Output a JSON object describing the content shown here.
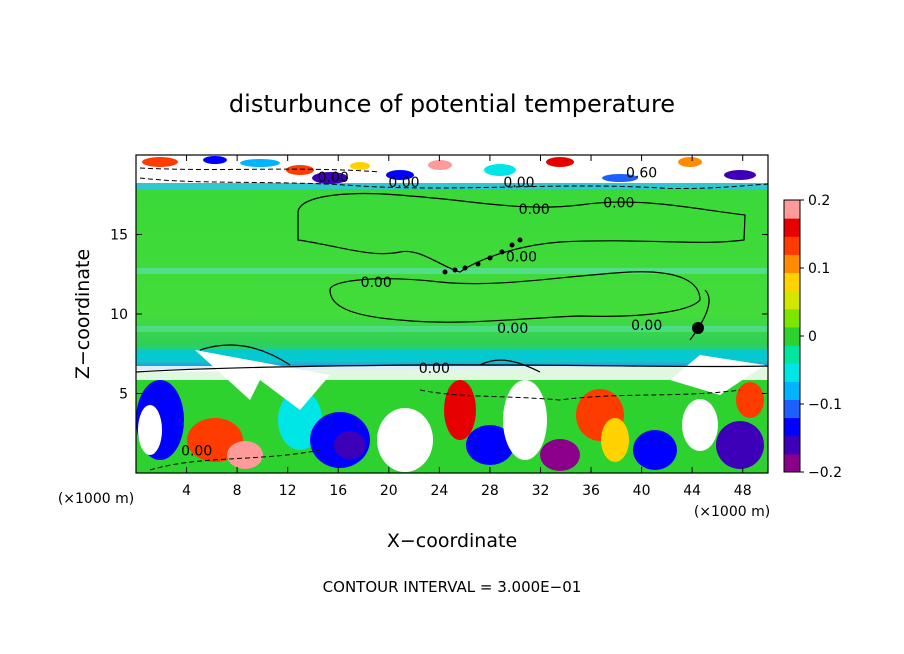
{
  "chart_data": {
    "type": "heatmap",
    "title": "disturbunce of potential temperature",
    "xlabel": "X−coordinate",
    "ylabel": "Z−coordinate",
    "x_unit_label": "(×1000 m)",
    "x_unit_label_right": "(×1000 m)",
    "footer": "CONTOUR INTERVAL = 3.000E−01",
    "xlim": [
      0,
      50
    ],
    "ylim": [
      0,
      20
    ],
    "x_ticks": [
      4,
      8,
      12,
      16,
      20,
      24,
      28,
      32,
      36,
      40,
      44,
      48
    ],
    "x_tick_labels": [
      "4",
      "8",
      "12",
      "16",
      "20",
      "24",
      "28",
      "32",
      "36",
      "40",
      "44",
      "48"
    ],
    "y_ticks": [
      5,
      10,
      15
    ],
    "y_tick_labels": [
      "5",
      "10",
      "15"
    ],
    "colorbar": {
      "range": [
        -0.2,
        0.2
      ],
      "ticks": [
        -0.2,
        -0.1,
        0,
        0.1,
        0.2
      ],
      "tick_labels": [
        "−0.2",
        "−0.1",
        "0",
        "0.1",
        "0.2"
      ],
      "colors": [
        "#8b008b",
        "#3d00b8",
        "#0000ff",
        "#1e60ff",
        "#00b4ff",
        "#00e6e6",
        "#00e69e",
        "#2ed22e",
        "#7de600",
        "#d2e600",
        "#ffd200",
        "#ff8c00",
        "#ff3c00",
        "#e60000",
        "#ff9a9a"
      ]
    },
    "contour_labels": [
      {
        "x": 4.8,
        "y": 1.1,
        "text": "0.00"
      },
      {
        "x": 15.6,
        "y": 18.3,
        "text": "0.00"
      },
      {
        "x": 21.2,
        "y": 18.0,
        "text": "0.00"
      },
      {
        "x": 30.3,
        "y": 18.0,
        "text": "0.00"
      },
      {
        "x": 40.0,
        "y": 18.6,
        "text": "0.60"
      },
      {
        "x": 38.2,
        "y": 16.7,
        "text": "0.00"
      },
      {
        "x": 31.5,
        "y": 16.3,
        "text": "0.00"
      },
      {
        "x": 19.0,
        "y": 11.7,
        "text": "0.00"
      },
      {
        "x": 30.5,
        "y": 13.3,
        "text": "0.00"
      },
      {
        "x": 29.8,
        "y": 8.8,
        "text": "0.00"
      },
      {
        "x": 40.4,
        "y": 9.0,
        "text": "0.00"
      },
      {
        "x": 23.6,
        "y": 6.3,
        "text": "0.00"
      }
    ],
    "field_regions": [
      {
        "zone": "upper layer z 18-20",
        "value": "mixed positive and negative, strong"
      },
      {
        "zone": "middle layer z 7-18",
        "value": 0.0
      },
      {
        "zone": "lower layer z 0-7",
        "value": "turbulent, strong negative and positive"
      }
    ]
  }
}
